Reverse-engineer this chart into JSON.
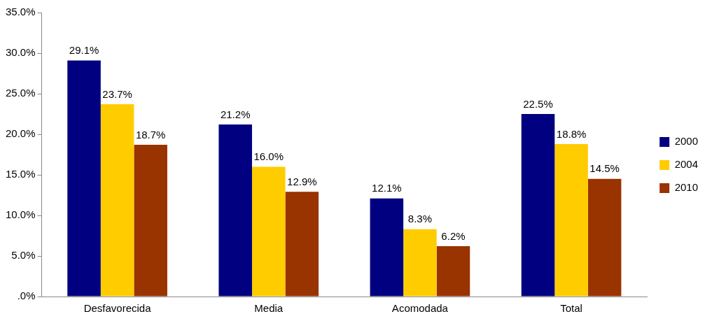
{
  "chart_data": {
    "type": "bar",
    "categories": [
      "Desfavorecida",
      "Media",
      "Acomodada",
      "Total"
    ],
    "series": [
      {
        "name": "2000",
        "color": "#000080",
        "values": [
          29.1,
          21.2,
          12.1,
          22.5
        ],
        "value_labels": [
          "29.1%",
          "21.2%",
          "12.1%",
          "22.5%"
        ]
      },
      {
        "name": "2004",
        "color": "#ffcc00",
        "values": [
          23.7,
          16.0,
          8.3,
          18.8
        ],
        "value_labels": [
          "23.7%",
          "16.0%",
          "8.3%",
          "18.8%"
        ]
      },
      {
        "name": "2010",
        "color": "#993300",
        "values": [
          18.7,
          12.9,
          6.2,
          14.5
        ],
        "value_labels": [
          "18.7%",
          "12.9%",
          "6.2%",
          "14.5%"
        ]
      }
    ],
    "ylim": [
      0,
      35
    ],
    "yticks": [
      {
        "value": 0,
        "label": ".0%"
      },
      {
        "value": 5,
        "label": "5.0%"
      },
      {
        "value": 10,
        "label": "10.0%"
      },
      {
        "value": 15,
        "label": "15.0%"
      },
      {
        "value": 20,
        "label": "20.0%"
      },
      {
        "value": 25,
        "label": "25.0%"
      },
      {
        "value": 30,
        "label": "30.0%"
      },
      {
        "value": 35,
        "label": "35.0%"
      }
    ],
    "grid": false,
    "legend": "right"
  }
}
